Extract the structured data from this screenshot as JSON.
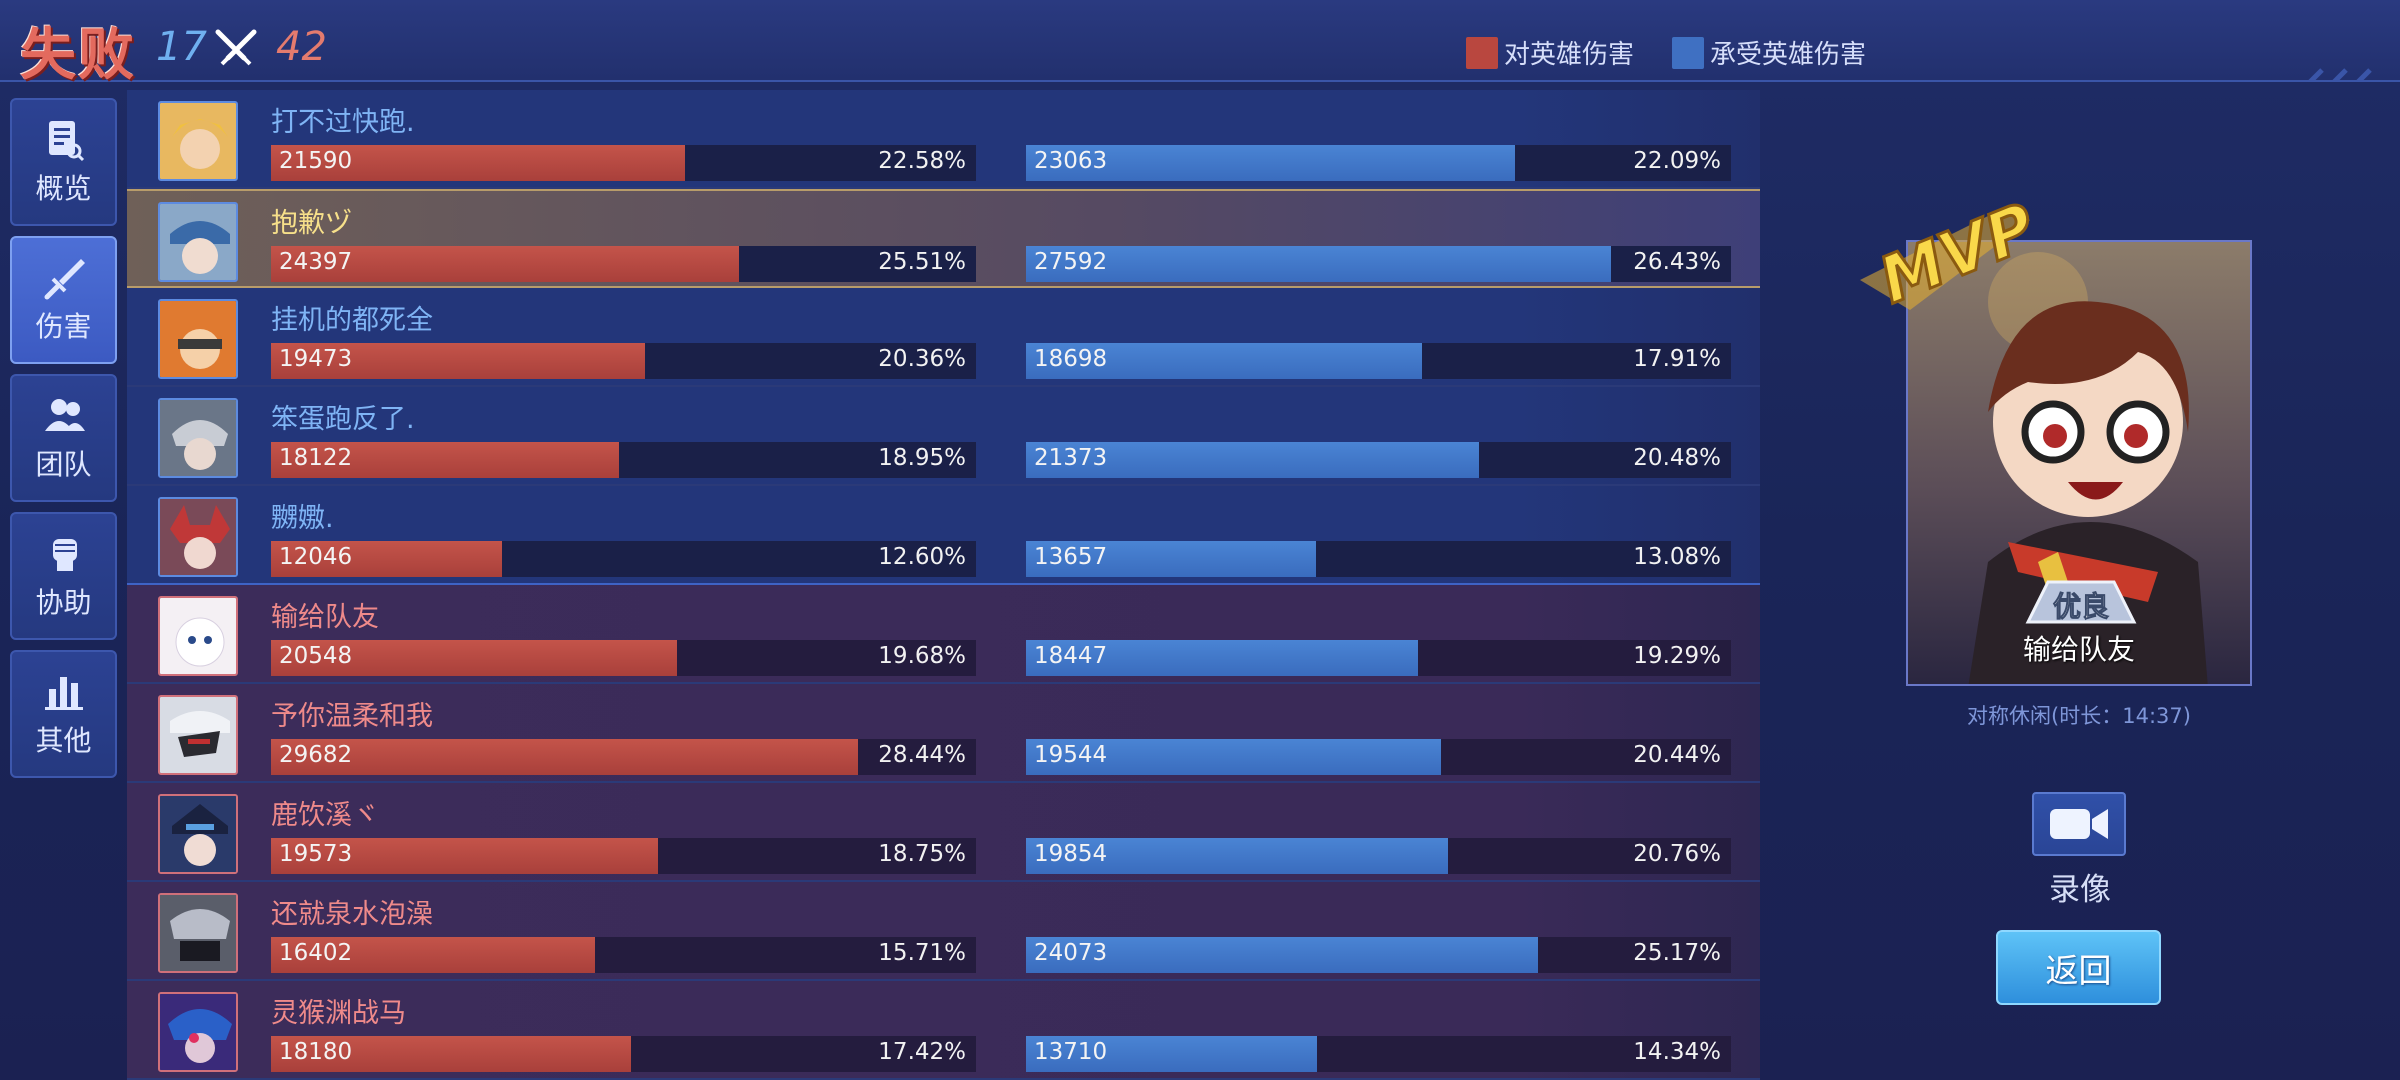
{
  "header": {
    "result": "失败",
    "kills_blue": "17",
    "kills_red": "42",
    "legend_dealt": "对英雄伤害",
    "legend_taken": "承受英雄伤害"
  },
  "nav": [
    {
      "label": "概览",
      "icon": "overview-icon"
    },
    {
      "label": "伤害",
      "icon": "sword-icon"
    },
    {
      "label": "团队",
      "icon": "team-icon"
    },
    {
      "label": "协助",
      "icon": "fist-icon"
    },
    {
      "label": "其他",
      "icon": "bar-chart-icon"
    }
  ],
  "players": [
    {
      "name": "打不过快跑.",
      "team": "blue",
      "dealt": "21590",
      "dealt_pct": "22.58%",
      "taken": "23063",
      "taken_pct": "22.09%",
      "dealt_frac": 0.5877,
      "taken_frac": 0.6935
    },
    {
      "name": "抱歉ヅ",
      "team": "me",
      "dealt": "24397",
      "dealt_pct": "25.51%",
      "taken": "27592",
      "taken_pct": "26.43%",
      "dealt_frac": 0.6639,
      "taken_frac": 0.8298
    },
    {
      "name": "挂机的都死全",
      "team": "blue",
      "dealt": "19473",
      "dealt_pct": "20.36%",
      "taken": "18698",
      "taken_pct": "17.91%",
      "dealt_frac": 0.5303,
      "taken_frac": 0.5623
    },
    {
      "name": "笨蛋跑反了.",
      "team": "blue",
      "dealt": "18122",
      "dealt_pct": "18.95%",
      "taken": "21373",
      "taken_pct": "20.48%",
      "dealt_frac": 0.4935,
      "taken_frac": 0.6428
    },
    {
      "name": "嬲嫐.",
      "team": "blue",
      "dealt": "12046",
      "dealt_pct": "12.60%",
      "taken": "13657",
      "taken_pct": "13.08%",
      "dealt_frac": 0.3281,
      "taken_frac": 0.4108
    },
    {
      "name": "输给队友",
      "team": "red",
      "dealt": "20548",
      "dealt_pct": "19.68%",
      "taken": "18447",
      "taken_pct": "19.29%",
      "dealt_frac": 0.5765,
      "taken_frac": 0.5561
    },
    {
      "name": "予你温柔和我",
      "team": "red",
      "dealt": "29682",
      "dealt_pct": "28.44%",
      "taken": "19544",
      "taken_pct": "20.44%",
      "dealt_frac": 0.8328,
      "taken_frac": 0.5892
    },
    {
      "name": "鹿饮溪ヾ",
      "team": "red",
      "dealt": "19573",
      "dealt_pct": "18.75%",
      "taken": "19854",
      "taken_pct": "20.76%",
      "dealt_frac": 0.5491,
      "taken_frac": 0.5985
    },
    {
      "name": "还就泉水泡澡",
      "team": "red",
      "dealt": "16402",
      "dealt_pct": "15.71%",
      "taken": "24073",
      "taken_pct": "25.17%",
      "dealt_frac": 0.4602,
      "taken_frac": 0.7257
    },
    {
      "name": "灵猴渊战马",
      "team": "red",
      "dealt": "18180",
      "dealt_pct": "17.42%",
      "taken": "13710",
      "taken_pct": "14.34%",
      "dealt_frac": 0.5101,
      "taken_frac": 0.4133
    }
  ],
  "mvp": {
    "badge": "MVP",
    "rating": "优良",
    "name": "输给队友",
    "mode": "对称休闲(时长：14:37)"
  },
  "buttons": {
    "record": "录像",
    "back": "返回"
  },
  "colors": {
    "dealt": "#b9473f",
    "taken": "#3f70c2",
    "blue_team_name": "#7fb4f5",
    "red_team_name": "#ef8a8a",
    "self_name": "#f7e08a"
  }
}
